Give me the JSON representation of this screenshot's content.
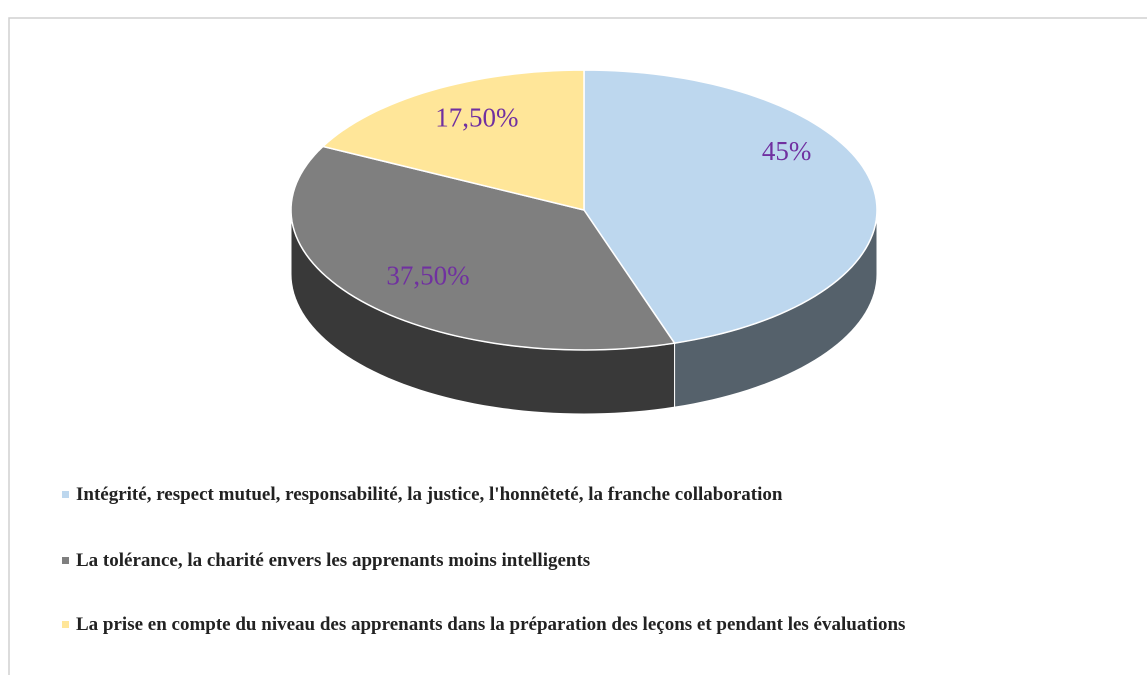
{
  "chart_data": {
    "type": "pie",
    "categories": [
      "Intégrité, respect mutuel, responsabilité, la justice, l'honnêteté, la franche collaboration",
      "La tolérance, la charité envers les apprenants moins intelligents",
      "La prise en compte du niveau des apprenants dans la préparation des leçons et pendant les évaluations"
    ],
    "values": [
      45,
      37.5,
      17.5
    ],
    "value_labels": [
      "45%",
      "37,50%",
      "17,50%"
    ],
    "colors": [
      "#bdd7ee",
      "#7f7f7f",
      "#ffe699"
    ]
  }
}
